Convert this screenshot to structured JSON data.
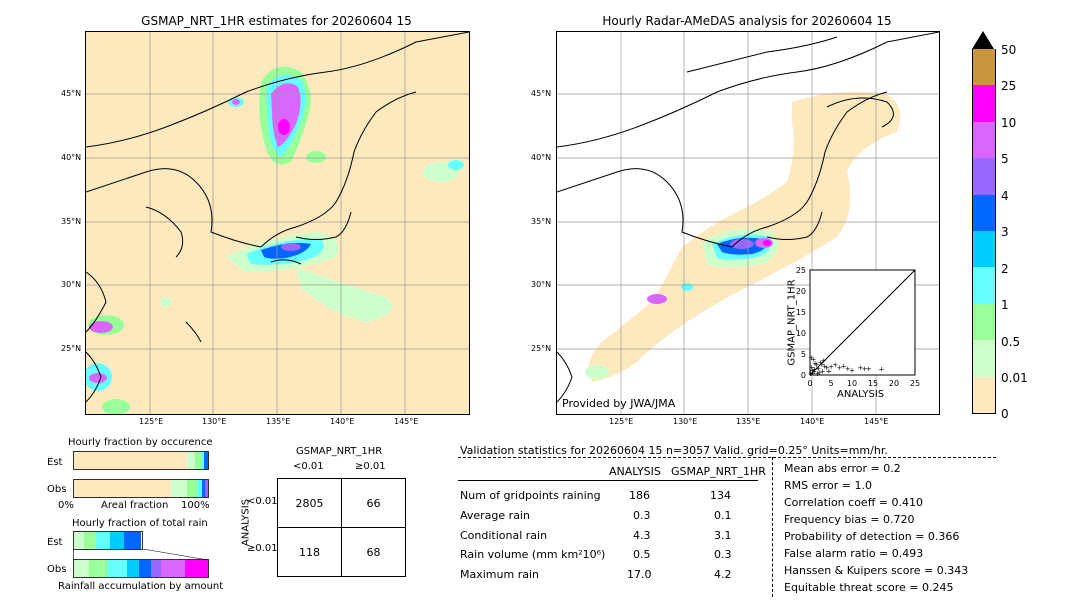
{
  "left_map": {
    "title": "GSMAP_NRT_1HR estimates for 20260604 15",
    "lat_labels": [
      "45°N",
      "40°N",
      "35°N",
      "30°N",
      "25°N"
    ],
    "lon_labels": [
      "125°E",
      "130°E",
      "135°E",
      "140°E",
      "145°E"
    ]
  },
  "right_map": {
    "title": "Hourly Radar-AMeDAS analysis for 20260604 15",
    "lat_labels": [
      "45°N",
      "40°N",
      "35°N",
      "30°N",
      "25°N"
    ],
    "lon_labels": [
      "125°E",
      "130°E",
      "135°E",
      "140°E",
      "145°E"
    ],
    "credit": "Provided by JWA/JMA"
  },
  "scatter": {
    "ylabel": "GSMAP_NRT_1HR",
    "xlabel": "ANALYSIS",
    "ticks": [
      "0",
      "5",
      "10",
      "15",
      "20",
      "25"
    ]
  },
  "colorbar": {
    "labels": [
      "50",
      "25",
      "10",
      "5",
      "4",
      "3",
      "2",
      "1",
      "0.5",
      "0.01",
      "0"
    ],
    "colors": [
      "#c8963c",
      "#ff00ff",
      "#d966ff",
      "#9966ff",
      "#0066ff",
      "#00ccff",
      "#66ffff",
      "#99ff99",
      "#ccffcc",
      "#fde9bd"
    ]
  },
  "fraction_occurrence": {
    "title": "Hourly fraction by occurence",
    "row_est": "Est",
    "row_obs": "Obs",
    "axis_left": "0%",
    "axis_mid": "Areal fraction",
    "axis_right": "100%"
  },
  "fraction_total": {
    "title": "Hourly fraction of total rain",
    "row_est": "Est",
    "row_obs": "Obs",
    "axis_label": "Rainfall accumulation by amount"
  },
  "contingency": {
    "title": "GSMAP_NRT_1HR",
    "col_lt": "<0.01",
    "col_ge": "≥0.01",
    "row_axis": "ANALYSIS",
    "row_lt": "<0.01",
    "row_ge": "≥0.01",
    "c11": "2805",
    "c12": "66",
    "c21": "118",
    "c22": "68"
  },
  "validation": {
    "header": "Validation statistics for 20260604 15  n=3057 Valid. grid=0.25° Units=mm/hr.",
    "col_analysis": "ANALYSIS",
    "col_gsmap": "GSMAP_NRT_1HR",
    "rows": [
      {
        "label": "Num of gridpoints raining",
        "analysis": "186",
        "gsmap": "134"
      },
      {
        "label": "Average rain",
        "analysis": "0.3",
        "gsmap": "0.1"
      },
      {
        "label": "Conditional rain",
        "analysis": "4.3",
        "gsmap": "3.1"
      },
      {
        "label": "Rain volume (mm km²10⁶)",
        "analysis": "0.5",
        "gsmap": "0.3"
      },
      {
        "label": "Maximum rain",
        "analysis": "17.0",
        "gsmap": "4.2"
      }
    ],
    "scores": [
      "Mean abs error =    0.2",
      "RMS error =    1.0",
      "Correlation coeff =  0.410",
      "Frequency bias =  0.720",
      "Probability of detection =  0.366",
      "False alarm ratio =  0.493",
      "Hanssen & Kuipers score =  0.343",
      "Equitable threat score =  0.245"
    ]
  },
  "chart_data": {
    "type": "scatter",
    "xlabel": "ANALYSIS",
    "ylabel": "GSMAP_NRT_1HR",
    "xlim": [
      0,
      25
    ],
    "ylim": [
      0,
      25
    ],
    "points": [
      [
        0.2,
        0.3
      ],
      [
        0.5,
        1.2
      ],
      [
        1.0,
        0.8
      ],
      [
        1.5,
        2.5
      ],
      [
        2.0,
        1.5
      ],
      [
        2.5,
        3.0
      ],
      [
        3.0,
        1.0
      ],
      [
        3.5,
        2.2
      ],
      [
        4.0,
        1.8
      ],
      [
        5.0,
        2.0
      ],
      [
        6.0,
        2.5
      ],
      [
        7.0,
        1.8
      ],
      [
        8.0,
        2.2
      ],
      [
        9.0,
        1.5
      ],
      [
        10.0,
        1.2
      ],
      [
        12.0,
        1.8
      ],
      [
        13.0,
        1.5
      ],
      [
        14.0,
        1.6
      ],
      [
        17.0,
        1.4
      ],
      [
        0.8,
        3.8
      ],
      [
        1.2,
        2.8
      ],
      [
        0.4,
        1.9
      ],
      [
        2.2,
        0.6
      ],
      [
        3.2,
        3.4
      ],
      [
        4.5,
        0.9
      ],
      [
        0.3,
        4.2
      ],
      [
        1.8,
        0.4
      ],
      [
        2.8,
        2.6
      ],
      [
        0.6,
        0.5
      ],
      [
        1.1,
        1.4
      ]
    ]
  }
}
